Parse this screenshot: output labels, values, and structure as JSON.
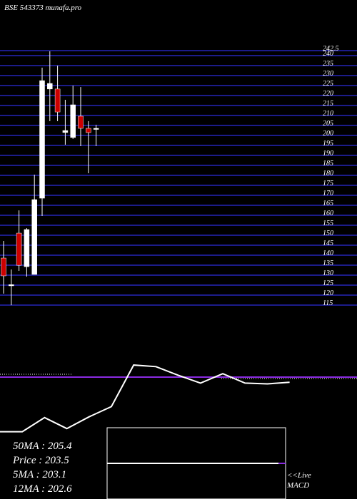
{
  "chart_data": [
    {
      "type": "candlestick",
      "title": "BSE 543373 munafa.pro",
      "candles": [
        {
          "open": 135.7,
          "high": 144.3,
          "low": 117.9,
          "close": 126.8
        },
        {
          "open": 121.8,
          "high": 130.0,
          "low": 112.1,
          "close": 122.4
        },
        {
          "open": 148.2,
          "high": 159.6,
          "low": 129.3,
          "close": 132.1
        },
        {
          "open": 131.4,
          "high": 150.7,
          "low": 126.4,
          "close": 150.0
        },
        {
          "open": 127.5,
          "high": 177.5,
          "low": 127.5,
          "close": 165.0
        },
        {
          "open": 165.7,
          "high": 231.1,
          "low": 156.8,
          "close": 224.6
        },
        {
          "open": 220.4,
          "high": 239.3,
          "low": 204.3,
          "close": 223.2
        },
        {
          "open": 220.4,
          "high": 232.1,
          "low": 204.3,
          "close": 208.9
        },
        {
          "open": 198.6,
          "high": 215.0,
          "low": 192.5,
          "close": 199.6
        },
        {
          "open": 196.1,
          "high": 222.1,
          "low": 195.4,
          "close": 212.5
        },
        {
          "open": 206.8,
          "high": 221.4,
          "low": 191.8,
          "close": 200.7
        },
        {
          "open": 200.7,
          "high": 204.3,
          "low": 178.2,
          "close": 198.6
        },
        {
          "open": 200.7,
          "high": 202.5,
          "low": 191.8,
          "close": 200.7
        }
      ],
      "up_color": "#ffffff",
      "down_color": "#cc0000",
      "grid_color": "#1c1c8a",
      "ylim": [
        112,
        242.5
      ],
      "yticks": [
        242.5,
        240,
        235,
        230,
        225,
        220,
        215,
        210,
        205,
        200,
        195,
        190,
        185,
        180,
        175,
        170,
        165,
        160,
        155,
        150,
        145,
        140,
        135,
        130,
        125,
        120,
        115
      ],
      "grid": true,
      "annotations": [
        "50MA : 205.4",
        "Price  : 203.5",
        "5MA : 203.1",
        "12MA : 202.6"
      ]
    },
    {
      "type": "line",
      "color": "#ffffff",
      "ylim": [
        0,
        100
      ],
      "values": [
        4,
        4,
        22,
        8,
        23,
        36,
        89,
        87,
        76,
        66,
        78,
        66,
        65,
        67
      ],
      "annotations": [
        "<<Live",
        "MACD"
      ]
    }
  ]
}
